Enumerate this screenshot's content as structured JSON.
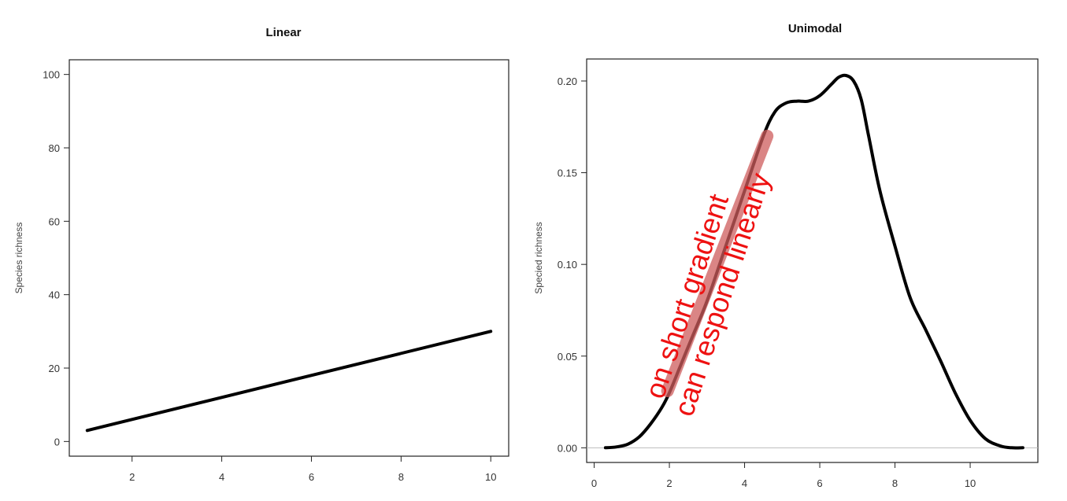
{
  "chart_data": [
    {
      "type": "line",
      "title": "Linear",
      "xlabel": "",
      "ylabel": "Species richness",
      "xlim": [
        0.6,
        10.4
      ],
      "ylim": [
        -4,
        104
      ],
      "xticks": [
        2,
        4,
        6,
        8,
        10
      ],
      "yticks": [
        0,
        20,
        40,
        60,
        80,
        100
      ],
      "series": [
        {
          "x": [
            1,
            10
          ],
          "y": [
            3,
            30
          ]
        }
      ],
      "grid": false,
      "colors": {
        "line": "#000000"
      }
    },
    {
      "type": "line",
      "title": "Unimodal",
      "xlabel": "",
      "ylabel": "Specied richness",
      "xlim": [
        -0.2,
        11.8
      ],
      "ylim": [
        -0.008,
        0.212
      ],
      "xticks": [
        0,
        2,
        4,
        6,
        8,
        10
      ],
      "yticks": [
        "0.00",
        "0.05",
        "0.10",
        "0.15",
        "0.20"
      ],
      "baseline": 0,
      "series": [
        {
          "x": [
            0.3,
            0.6,
            0.9,
            1.2,
            1.5,
            1.8,
            2.0,
            2.3,
            2.6,
            3.0,
            3.5,
            4.0,
            4.5,
            4.8,
            5.1,
            5.4,
            5.7,
            6.0,
            6.3,
            6.5,
            6.7,
            6.9,
            7.1,
            7.3,
            7.6,
            8.0,
            8.4,
            8.8,
            9.2,
            9.6,
            10.0,
            10.4,
            10.8,
            11.1,
            11.4
          ],
          "y": [
            0.0,
            0.0005,
            0.002,
            0.006,
            0.013,
            0.022,
            0.03,
            0.045,
            0.06,
            0.08,
            0.11,
            0.14,
            0.17,
            0.183,
            0.188,
            0.189,
            0.189,
            0.192,
            0.198,
            0.202,
            0.203,
            0.2,
            0.19,
            0.17,
            0.14,
            0.11,
            0.082,
            0.065,
            0.048,
            0.03,
            0.015,
            0.005,
            0.001,
            0.0,
            0.0
          ]
        }
      ],
      "highlight": {
        "x": [
          1.95,
          4.6
        ],
        "y": [
          0.031,
          0.17
        ]
      },
      "annotations": [
        "on short gradient",
        "can respond linearly"
      ],
      "grid": false,
      "colors": {
        "line": "#000000",
        "highlight": "#cd5c5c",
        "annotation": "#ee1111",
        "baseline": "#bbbbbb"
      }
    }
  ]
}
